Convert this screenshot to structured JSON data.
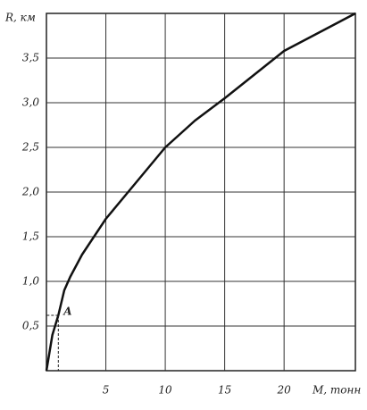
{
  "chart_data": {
    "type": "line",
    "x_label": "M, тонн",
    "y_label": "R, км",
    "x": [
      0,
      0.5,
      1,
      1.5,
      2,
      3,
      5,
      7.5,
      10,
      12.5,
      15,
      20,
      26
    ],
    "series": [
      {
        "color": "#111111",
        "values": [
          0,
          0.4,
          0.62,
          0.9,
          1.05,
          1.3,
          1.7,
          2.1,
          2.5,
          2.8,
          3.05,
          3.58,
          4.0
        ]
      }
    ],
    "xlim": [
      0,
      26
    ],
    "ylim": [
      0,
      4
    ],
    "xticks": [
      5,
      10,
      15,
      20
    ],
    "yticks": [
      {
        "value": 0.5,
        "label": "0,5"
      },
      {
        "value": 1.0,
        "label": "1,0"
      },
      {
        "value": 1.5,
        "label": "1,5"
      },
      {
        "value": 2.0,
        "label": "2,0"
      },
      {
        "value": 2.5,
        "label": "2,5"
      },
      {
        "value": 3.0,
        "label": "3,0"
      },
      {
        "value": 3.5,
        "label": "3,5"
      }
    ],
    "grid": true,
    "annotation": {
      "text": "A",
      "x": 1,
      "y": 0.62
    }
  }
}
